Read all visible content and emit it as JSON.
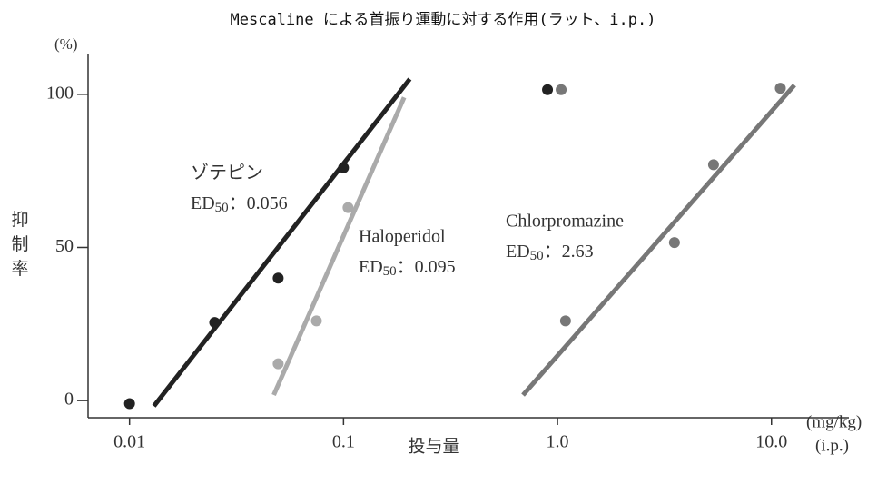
{
  "chart_data": {
    "type": "scatter",
    "title": "Mescaline による首振り運動に対する作用(ラット、i.p.)",
    "y_unit": "(%)",
    "y_label": "抑制率",
    "x_label": "投与量",
    "x_unit": "(mg/kg)",
    "x_unit2": "(i.p.)",
    "log_x": true,
    "xlim": [
      0.0064,
      23
    ],
    "ylim": [
      -5.6,
      113
    ],
    "xticks": [
      0.01,
      0.1,
      {
        "value": 1,
        "label": "1.0"
      },
      {
        "value": 10,
        "label": "10.0"
      }
    ],
    "yticks": [
      0,
      50,
      100
    ],
    "series": [
      {
        "name": "ゾテピン",
        "ed_label": [
          "ED",
          "50",
          "：0.056"
        ],
        "color": "#222222",
        "x": [
          0.01,
          0.025,
          0.0495,
          0.1,
          0.898
        ],
        "values": [
          -1,
          25.5,
          40,
          76,
          101.5
        ],
        "fit": {
          "x": [
            0.013,
            0.204
          ],
          "values": [
            -1.8,
            105
          ]
        }
      },
      {
        "name": "Haloperidol",
        "ed_label": [
          "ED",
          "50",
          "：0.095"
        ],
        "color": "#aaaaaa",
        "x": [
          0.0495,
          0.0747,
          0.105
        ],
        "values": [
          12,
          26,
          63
        ],
        "fit": {
          "x": [
            0.0472,
            0.192
          ],
          "values": [
            1.8,
            99
          ]
        }
      },
      {
        "name": "Chlorpromazine",
        "ed_label": [
          "ED",
          "50",
          "：2.63"
        ],
        "color": "#777777",
        "x": [
          1.04,
          1.09,
          3.52,
          5.36,
          11.0
        ],
        "values": [
          101.5,
          26,
          51.6,
          77,
          102
        ],
        "fit": {
          "x": [
            0.69,
            12.8
          ],
          "values": [
            1.8,
            103
          ]
        }
      }
    ]
  }
}
